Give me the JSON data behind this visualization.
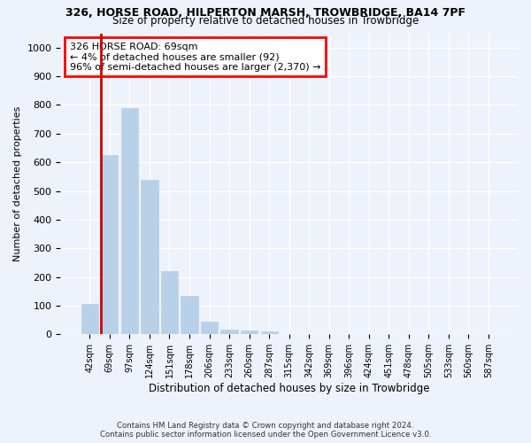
{
  "title": "326, HORSE ROAD, HILPERTON MARSH, TROWBRIDGE, BA14 7PF",
  "subtitle": "Size of property relative to detached houses in Trowbridge",
  "xlabel": "Distribution of detached houses by size in Trowbridge",
  "ylabel": "Number of detached properties",
  "bar_labels": [
    "42sqm",
    "69sqm",
    "97sqm",
    "124sqm",
    "151sqm",
    "178sqm",
    "206sqm",
    "233sqm",
    "260sqm",
    "287sqm",
    "315sqm",
    "342sqm",
    "369sqm",
    "396sqm",
    "424sqm",
    "451sqm",
    "478sqm",
    "505sqm",
    "533sqm",
    "560sqm",
    "587sqm"
  ],
  "bar_values": [
    105,
    625,
    790,
    540,
    220,
    135,
    45,
    18,
    12,
    10,
    0,
    0,
    0,
    0,
    0,
    0,
    0,
    0,
    0,
    0,
    0
  ],
  "highlight_bar_index": 1,
  "highlight_color": "#cc0000",
  "bar_color": "#b8d0e8",
  "bar_edge_color": "#b8d0e8",
  "background_color": "#eef2fa",
  "grid_color": "#ffffff",
  "ylim": [
    0,
    1050
  ],
  "yticks": [
    0,
    100,
    200,
    300,
    400,
    500,
    600,
    700,
    800,
    900,
    1000
  ],
  "annotation_text": "326 HORSE ROAD: 69sqm\n← 4% of detached houses are smaller (92)\n96% of semi-detached houses are larger (2,370) →",
  "footer1": "Contains HM Land Registry data © Crown copyright and database right 2024.",
  "footer2": "Contains public sector information licensed under the Open Government Licence v3.0."
}
